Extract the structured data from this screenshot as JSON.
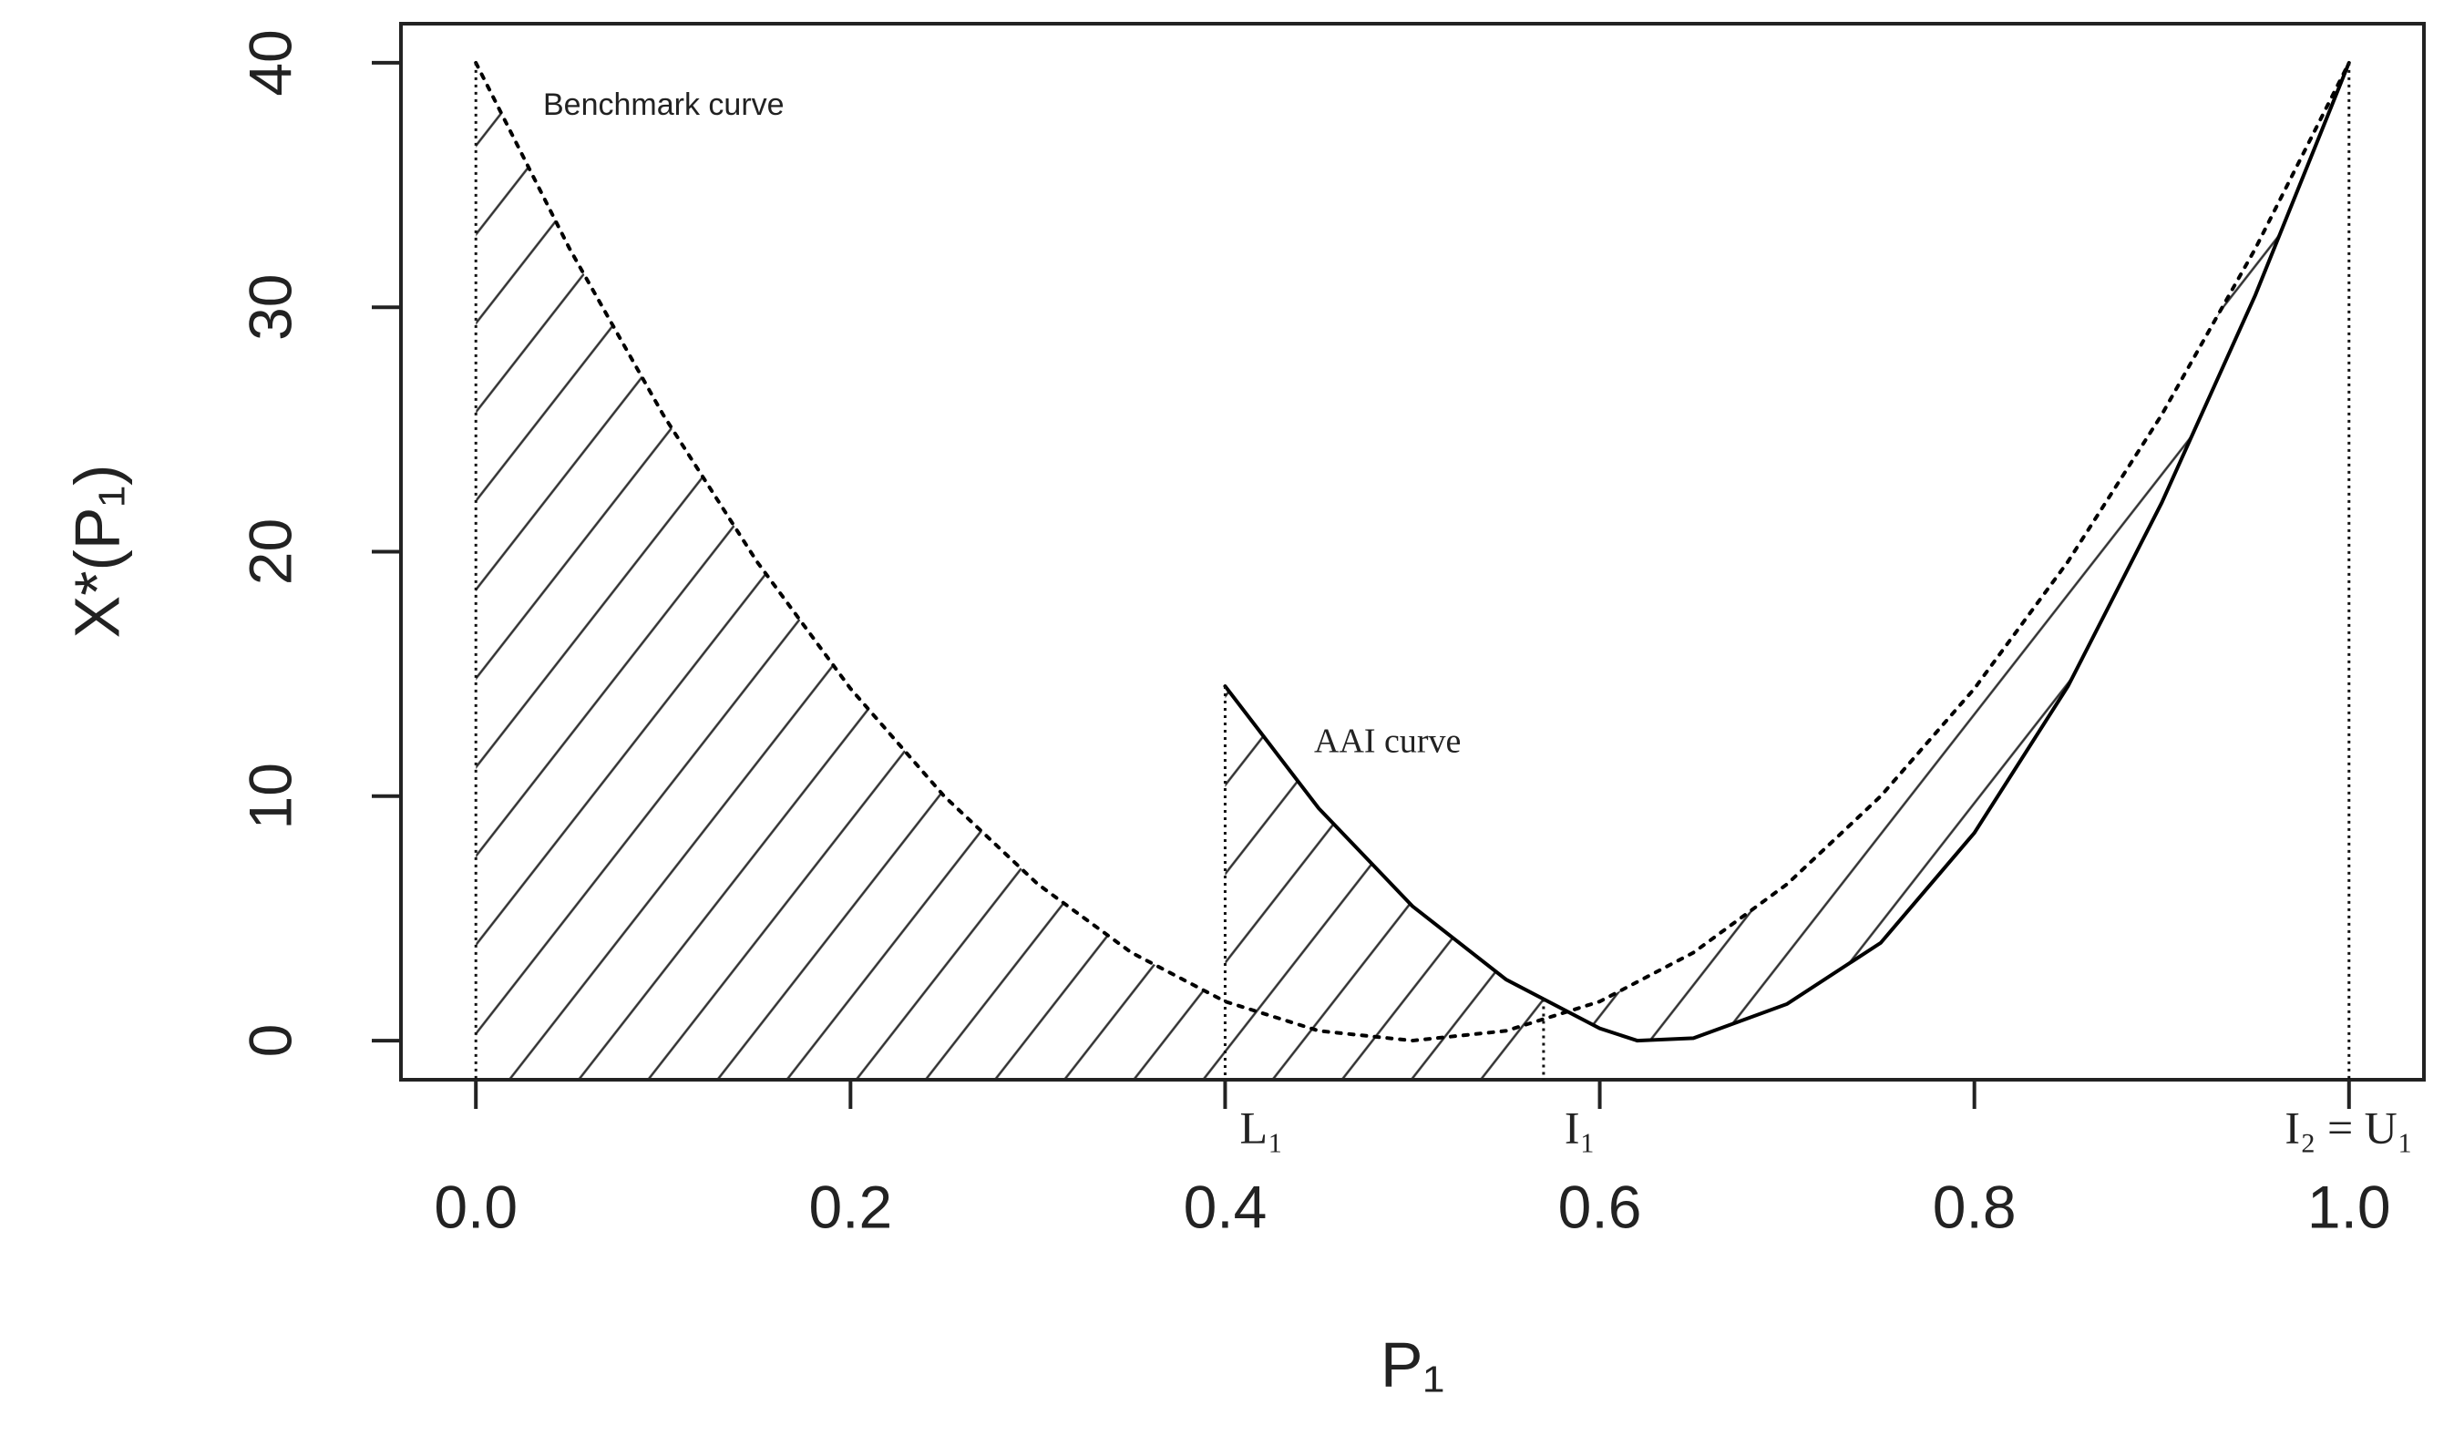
{
  "chart_data": {
    "type": "line",
    "x_label": "P₁",
    "y_label": "X*(P₁)",
    "xlim": [
      -0.04,
      1.04
    ],
    "ylim": [
      -1.6,
      41.6
    ],
    "xticks": [
      {
        "value": 0,
        "label": "0.0"
      },
      0.2,
      0.4,
      0.6,
      0.8,
      {
        "value": 1,
        "label": "1.0"
      }
    ],
    "yticks": [
      0,
      10,
      20,
      30,
      40
    ],
    "series": [
      {
        "name": "Benchmark curve",
        "color": "#000000",
        "dash": "dotted",
        "x": [
          0,
          0.05,
          0.1,
          0.15,
          0.2,
          0.25,
          0.3,
          0.35,
          0.4,
          0.45,
          0.5,
          0.55,
          0.6,
          0.65,
          0.7,
          0.75,
          0.8,
          0.85,
          0.9,
          0.95,
          1
        ],
        "values": [
          40,
          32.4,
          25.6,
          19.6,
          14.4,
          10,
          6.4,
          3.6,
          1.6,
          0.4,
          0,
          0.4,
          1.6,
          3.6,
          6.4,
          10,
          14.4,
          19.6,
          25.6,
          32.4,
          40
        ]
      },
      {
        "name": "AAI curve",
        "color": "#000000",
        "dash": "solid",
        "x": [
          0.4,
          0.45,
          0.5,
          0.55,
          0.6,
          0.62,
          0.65,
          0.7,
          0.75,
          0.8,
          0.85,
          0.9,
          0.95,
          1
        ],
        "values": [
          14.5,
          9.5,
          5.5,
          2.5,
          0.5,
          0,
          0.1,
          1.5,
          4,
          8.5,
          14.5,
          22,
          30.5,
          40
        ]
      }
    ],
    "vlines": [
      0,
      0.4,
      0.57,
      1
    ],
    "vline_labels": [
      null,
      "L₁",
      "I₁",
      "I₂ = U₁"
    ]
  }
}
